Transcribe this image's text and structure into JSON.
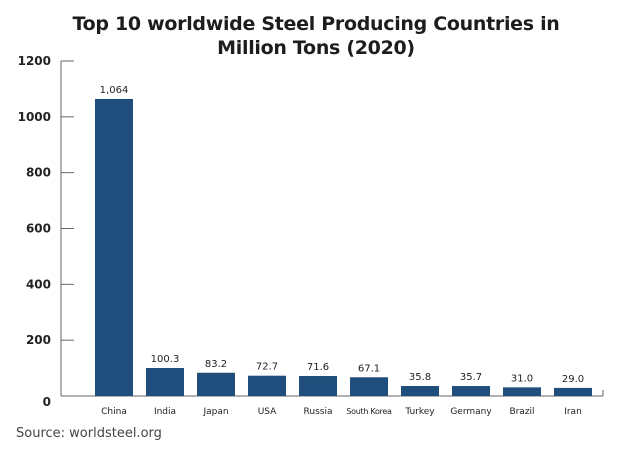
{
  "chart_data": {
    "type": "bar",
    "title_lines": [
      "Top 10 worldwide Steel Producing Countries in",
      "Million Tons (2020)"
    ],
    "xlabel": "",
    "ylabel": "",
    "categories": [
      "China",
      "India",
      "Japan",
      "USA",
      "Russia",
      "South Korea",
      "Turkey",
      "Germany",
      "Brazil",
      "Iran"
    ],
    "values": [
      1064,
      100.3,
      83.2,
      72.7,
      71.6,
      67.1,
      35.8,
      35.7,
      31.0,
      29.0
    ],
    "value_labels": [
      "1,064",
      "100.3",
      "83.2",
      "72.7",
      "71.6",
      "67.1",
      "35.8",
      "35.7",
      "31.0",
      "29.0"
    ],
    "ylim": [
      0,
      1200
    ],
    "yticks": [
      0,
      200,
      400,
      600,
      800,
      1000,
      1200
    ],
    "grid": false,
    "legend": "none",
    "bar_color": "#1f4e7c",
    "axis_color": "#666666"
  },
  "source": "Source: worldsteel.org"
}
